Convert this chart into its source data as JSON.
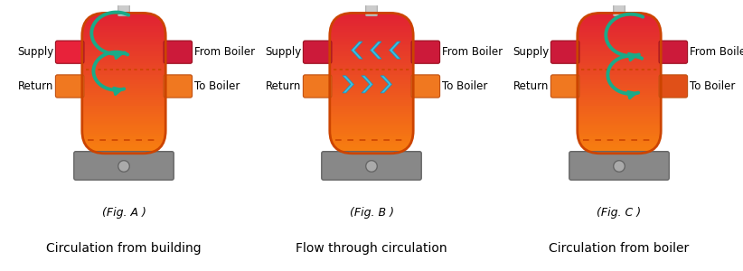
{
  "figures": [
    {
      "label": "(Fig. A )",
      "title": "Circulation from building",
      "arrow_type": "circulation"
    },
    {
      "label": "(Fig. B )",
      "title": "Flow through circulation",
      "arrow_type": "flow_through"
    },
    {
      "label": "(Fig. C )",
      "title": "Circulation from boiler",
      "arrow_type": "circulation_boiler"
    }
  ],
  "bg_color": "#ffffff",
  "teal_arrow": "#1aaa88",
  "cyan_arrow": "#3bbfe0",
  "tank_border_color": "#cc4400",
  "base_color": "#888888",
  "supply_left_colors": [
    "#e8223a",
    "#cc1a3a",
    "#cc1a3a"
  ],
  "supply_right_colors": [
    "#cc1a3a",
    "#cc1a3a",
    "#cc1a3a"
  ],
  "return_left_colors": [
    "#f07820",
    "#f07820",
    "#f07820"
  ],
  "return_right_colors": [
    "#f07820",
    "#f07820",
    "#e05018"
  ]
}
